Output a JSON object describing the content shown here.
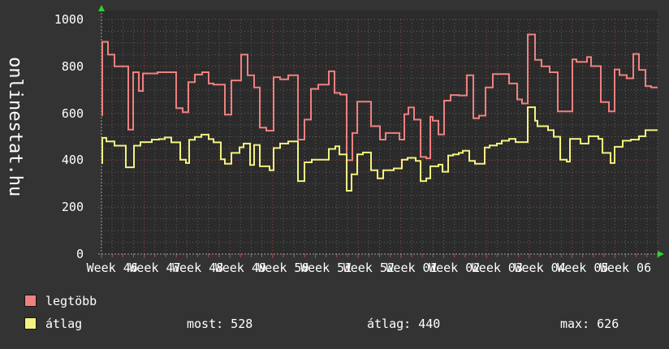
{
  "branding": {
    "site": "onlinestat.hu"
  },
  "legend": {
    "items": [
      {
        "label": "legtöbb",
        "color": "#f08080"
      },
      {
        "label": "átlag",
        "color": "#f2f281"
      }
    ]
  },
  "stats": {
    "most_text": "most: 528",
    "atlag_text": "átlag: 440",
    "max_text": "max: 626"
  },
  "colors": {
    "background": "#333333",
    "plot_background": "#2b2b2b",
    "text": "#ffffff",
    "grid_minor": "#5e5e5e",
    "grid_major": "#a34545",
    "axis": "#a0a0a0",
    "arrow": "#2fd12f",
    "tick": "#c84747",
    "series_red": "#f08080",
    "series_yellow": "#f2f281"
  },
  "chart_data": {
    "type": "line",
    "subtype": "step",
    "title": "",
    "x_axis_labels": [
      "Week 46",
      "Week 47",
      "Week 48",
      "Week 49",
      "Week 50",
      "Week 51",
      "Week 52",
      "Week 01",
      "Week 02",
      "Week 03",
      "Week 04",
      "Week 05",
      "Week 06"
    ],
    "x_unit": "week",
    "weeks": 13,
    "minor_steps_per_week": 4,
    "y_ticks": [
      0,
      200,
      400,
      600,
      800,
      1000
    ],
    "ylim": [
      0,
      1000
    ],
    "ytick_step": 200,
    "minor_ytick_step": 50,
    "grid": "dotted",
    "legend_position": "bottom-left",
    "summary": {
      "most": 528,
      "atlag": 440,
      "max": 626
    },
    "series": [
      {
        "name": "legtöbb",
        "color": "#f08080",
        "points": [
          [
            125,
            592
          ],
          [
            126,
            905
          ],
          [
            133,
            850
          ],
          [
            141,
            800
          ],
          [
            158,
            530
          ],
          [
            164,
            775
          ],
          [
            171,
            695
          ],
          [
            176,
            770
          ],
          [
            194,
            775
          ],
          [
            217,
            622
          ],
          [
            225,
            605
          ],
          [
            232,
            733
          ],
          [
            240,
            765
          ],
          [
            249,
            775
          ],
          [
            257,
            727
          ],
          [
            263,
            722
          ],
          [
            277,
            594
          ],
          [
            285,
            740
          ],
          [
            297,
            850
          ],
          [
            305,
            762
          ],
          [
            313,
            710
          ],
          [
            320,
            539
          ],
          [
            328,
            526
          ],
          [
            337,
            754
          ],
          [
            345,
            745
          ],
          [
            355,
            762
          ],
          [
            367,
            488
          ],
          [
            375,
            573
          ],
          [
            383,
            704
          ],
          [
            392,
            722
          ],
          [
            405,
            779
          ],
          [
            412,
            687
          ],
          [
            419,
            680
          ],
          [
            427,
            400
          ],
          [
            434,
            516
          ],
          [
            440,
            650
          ],
          [
            457,
            545
          ],
          [
            468,
            488
          ],
          [
            475,
            516
          ],
          [
            492,
            488
          ],
          [
            498,
            596
          ],
          [
            503,
            625
          ],
          [
            510,
            573
          ],
          [
            518,
            414
          ],
          [
            525,
            408
          ],
          [
            530,
            585
          ],
          [
            533,
            568
          ],
          [
            540,
            510
          ],
          [
            547,
            654
          ],
          [
            555,
            678
          ],
          [
            565,
            676
          ],
          [
            575,
            762
          ],
          [
            583,
            579
          ],
          [
            590,
            590
          ],
          [
            598,
            710
          ],
          [
            607,
            767
          ],
          [
            627,
            727
          ],
          [
            637,
            659
          ],
          [
            643,
            642
          ],
          [
            650,
            936
          ],
          [
            659,
            828
          ],
          [
            667,
            800
          ],
          [
            677,
            775
          ],
          [
            687,
            608
          ],
          [
            705,
            830
          ],
          [
            710,
            819
          ],
          [
            723,
            840
          ],
          [
            728,
            801
          ],
          [
            740,
            648
          ],
          [
            750,
            608
          ],
          [
            757,
            787
          ],
          [
            763,
            763
          ],
          [
            772,
            749
          ],
          [
            780,
            853
          ],
          [
            787,
            785
          ],
          [
            795,
            716
          ],
          [
            802,
            710
          ]
        ]
      },
      {
        "name": "átlag",
        "color": "#f2f281",
        "points": [
          [
            125,
            388
          ],
          [
            126,
            495
          ],
          [
            131,
            480
          ],
          [
            141,
            462
          ],
          [
            155,
            370
          ],
          [
            165,
            462
          ],
          [
            173,
            477
          ],
          [
            187,
            488
          ],
          [
            196,
            490
          ],
          [
            203,
            497
          ],
          [
            211,
            476
          ],
          [
            222,
            402
          ],
          [
            229,
            388
          ],
          [
            233,
            487
          ],
          [
            240,
            499
          ],
          [
            248,
            509
          ],
          [
            257,
            490
          ],
          [
            263,
            476
          ],
          [
            272,
            404
          ],
          [
            277,
            385
          ],
          [
            285,
            431
          ],
          [
            295,
            455
          ],
          [
            300,
            471
          ],
          [
            308,
            380
          ],
          [
            313,
            465
          ],
          [
            320,
            374
          ],
          [
            332,
            357
          ],
          [
            337,
            452
          ],
          [
            345,
            471
          ],
          [
            355,
            480
          ],
          [
            367,
            311
          ],
          [
            375,
            391
          ],
          [
            384,
            402
          ],
          [
            405,
            448
          ],
          [
            413,
            459
          ],
          [
            418,
            425
          ],
          [
            427,
            270
          ],
          [
            433,
            340
          ],
          [
            440,
            425
          ],
          [
            447,
            433
          ],
          [
            457,
            357
          ],
          [
            465,
            323
          ],
          [
            472,
            357
          ],
          [
            485,
            365
          ],
          [
            495,
            402
          ],
          [
            502,
            410
          ],
          [
            512,
            397
          ],
          [
            518,
            311
          ],
          [
            525,
            323
          ],
          [
            530,
            374
          ],
          [
            540,
            381
          ],
          [
            545,
            351
          ],
          [
            552,
            420
          ],
          [
            558,
            425
          ],
          [
            565,
            431
          ],
          [
            570,
            440
          ],
          [
            578,
            397
          ],
          [
            585,
            385
          ],
          [
            597,
            454
          ],
          [
            603,
            463
          ],
          [
            612,
            471
          ],
          [
            618,
            483
          ],
          [
            627,
            491
          ],
          [
            635,
            477
          ],
          [
            650,
            626
          ],
          [
            659,
            568
          ],
          [
            662,
            545
          ],
          [
            675,
            528
          ],
          [
            682,
            500
          ],
          [
            690,
            402
          ],
          [
            698,
            394
          ],
          [
            702,
            491
          ],
          [
            715,
            471
          ],
          [
            725,
            502
          ],
          [
            737,
            491
          ],
          [
            742,
            431
          ],
          [
            752,
            388
          ],
          [
            757,
            457
          ],
          [
            767,
            483
          ],
          [
            777,
            488
          ],
          [
            787,
            502
          ],
          [
            795,
            528
          ]
        ]
      }
    ]
  }
}
